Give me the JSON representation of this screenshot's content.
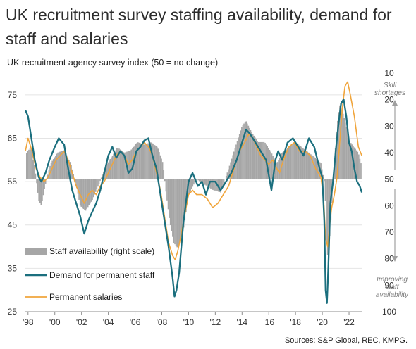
{
  "title": "UK recruitment survey staffing availability, demand for staff and salaries",
  "subtitle": "UK recruitment agency survey index (50 = no change)",
  "source": "Sources: S&P Global, REC, KMPG.",
  "notes": {
    "top": [
      "Skill",
      "shortages"
    ],
    "bottom": [
      "Improving",
      "staff",
      "availability"
    ]
  },
  "colors": {
    "availability": "#a6a6a6",
    "demand": "#1b6f7e",
    "salaries": "#f0a53c",
    "arrow": "#a0a0a0"
  },
  "chart_data": {
    "type": "line",
    "title": "UK recruitment survey staffing availability, demand for staff and salaries",
    "ylabel": "UK recruitment agency survey index (50 = no change)",
    "ylim": [
      25,
      80
    ],
    "y_ticks": [
      25,
      35,
      45,
      55,
      65,
      75
    ],
    "y2lim": [
      10,
      100
    ],
    "y2_inverted": true,
    "y2_ticks": [
      10,
      20,
      30,
      40,
      50,
      60,
      70,
      80,
      90,
      100
    ],
    "xlim": [
      1997.8,
      2023.0
    ],
    "x_ticks": [
      1998,
      2000,
      2002,
      2004,
      2006,
      2008,
      2010,
      2012,
      2014,
      2016,
      2018,
      2020,
      2022
    ],
    "x_tick_labels": [
      "'98",
      "'00",
      "'02",
      "'04",
      "'06",
      "'08",
      "'10",
      "'12",
      "'14",
      "'16",
      "'18",
      "'20",
      "'22"
    ],
    "grid": true,
    "series": [
      {
        "name": "Staff availability (right scale)",
        "kind": "bar",
        "axis": "right",
        "x": [
          1997.9,
          1998.2,
          1998.5,
          1998.8,
          1999.0,
          1999.3,
          1999.7,
          2000.2,
          2000.7,
          2001.2,
          2001.6,
          2001.9,
          2002.3,
          2002.8,
          2003.3,
          2003.8,
          2004.2,
          2004.7,
          2005.2,
          2005.7,
          2006.2,
          2006.7,
          2007.2,
          2007.7,
          2008.1,
          2008.3,
          2008.6,
          2008.9,
          2009.2,
          2009.6,
          2010.0,
          2010.6,
          2011.2,
          2011.8,
          2012.4,
          2013.0,
          2013.5,
          2014.0,
          2014.3,
          2014.7,
          2015.2,
          2015.7,
          2016.2,
          2016.6,
          2017.0,
          2017.5,
          2018.0,
          2018.5,
          2019.0,
          2019.5,
          2019.9,
          2020.2,
          2020.35,
          2020.5,
          2020.7,
          2020.9,
          2021.1,
          2021.3,
          2021.5,
          2021.7,
          2021.9,
          2022.1,
          2022.4,
          2022.7,
          2022.9
        ],
        "values": [
          40,
          38,
          45,
          58,
          60,
          52,
          44,
          40,
          39,
          44,
          52,
          60,
          62,
          58,
          52,
          45,
          42,
          38,
          40,
          39,
          36,
          37,
          36,
          38,
          44,
          54,
          66,
          74,
          76,
          70,
          56,
          50,
          52,
          54,
          55,
          46,
          38,
          30,
          28,
          32,
          36,
          36,
          40,
          44,
          40,
          38,
          36,
          38,
          40,
          42,
          44,
          52,
          80,
          76,
          62,
          44,
          30,
          22,
          24,
          28,
          32,
          36,
          38,
          40,
          44
        ]
      },
      {
        "name": "Demand for permanent staff",
        "kind": "line",
        "axis": "left",
        "x": [
          1997.8,
          1998.0,
          1998.2,
          1998.5,
          1998.8,
          1999.0,
          1999.3,
          1999.6,
          2000.0,
          2000.3,
          2000.7,
          2001.0,
          2001.3,
          2001.6,
          2001.9,
          2002.2,
          2002.5,
          2002.8,
          2003.1,
          2003.4,
          2003.7,
          2004.0,
          2004.3,
          2004.6,
          2004.9,
          2005.2,
          2005.5,
          2005.8,
          2006.1,
          2006.4,
          2006.7,
          2007.0,
          2007.3,
          2007.6,
          2007.9,
          2008.2,
          2008.5,
          2008.8,
          2008.95,
          2009.1,
          2009.3,
          2009.6,
          2010.0,
          2010.3,
          2010.7,
          2011.0,
          2011.3,
          2011.6,
          2012.0,
          2012.4,
          2012.8,
          2013.2,
          2013.6,
          2014.0,
          2014.3,
          2014.6,
          2015.0,
          2015.4,
          2015.8,
          2016.2,
          2016.5,
          2016.7,
          2017.0,
          2017.4,
          2017.8,
          2018.2,
          2018.6,
          2019.0,
          2019.4,
          2019.8,
          2020.0,
          2020.15,
          2020.25,
          2020.35,
          2020.45,
          2020.6,
          2020.8,
          2021.0,
          2021.2,
          2021.4,
          2021.6,
          2021.8,
          2022.0,
          2022.2,
          2022.4,
          2022.6,
          2022.8,
          2022.95
        ],
        "values": [
          71.5,
          70,
          66,
          60,
          56,
          55,
          57,
          60,
          63,
          65,
          63.5,
          58,
          53,
          50,
          47,
          43,
          46,
          48,
          50,
          53,
          57,
          61,
          63,
          60.5,
          62,
          61,
          57,
          58,
          62,
          63,
          64.5,
          65,
          61,
          58,
          52,
          46,
          40,
          33,
          28.5,
          30,
          34,
          45,
          55,
          57,
          54,
          55,
          52,
          55,
          55,
          53,
          55,
          57,
          60,
          64,
          67,
          66,
          64,
          62,
          60,
          53,
          60,
          62,
          60,
          64,
          65,
          63,
          61,
          65,
          63,
          58,
          56,
          46,
          30,
          27,
          35,
          50,
          55,
          62,
          68,
          73,
          74,
          70,
          64,
          62,
          58,
          55,
          54,
          52.5
        ]
      },
      {
        "name": "Permanent salaries",
        "kind": "line",
        "axis": "left",
        "x": [
          1997.8,
          1998.0,
          1998.3,
          1998.6,
          1998.9,
          1999.2,
          1999.5,
          1999.8,
          2000.1,
          2000.4,
          2000.7,
          2001.0,
          2001.3,
          2001.6,
          2001.9,
          2002.2,
          2002.5,
          2002.8,
          2003.1,
          2003.4,
          2003.7,
          2004.0,
          2004.3,
          2004.6,
          2004.9,
          2005.2,
          2005.5,
          2005.8,
          2006.1,
          2006.4,
          2006.7,
          2007.0,
          2007.3,
          2007.6,
          2007.9,
          2008.2,
          2008.5,
          2008.8,
          2009.0,
          2009.2,
          2009.4,
          2009.7,
          2010.0,
          2010.3,
          2010.6,
          2011.0,
          2011.4,
          2011.8,
          2012.2,
          2012.6,
          2013.0,
          2013.4,
          2013.8,
          2014.2,
          2014.5,
          2014.8,
          2015.1,
          2015.4,
          2015.7,
          2016.0,
          2016.3,
          2016.6,
          2016.8,
          2017.1,
          2017.5,
          2017.9,
          2018.3,
          2018.7,
          2019.1,
          2019.5,
          2019.9,
          2020.1,
          2020.25,
          2020.4,
          2020.55,
          2020.7,
          2020.9,
          2021.1,
          2021.3,
          2021.5,
          2021.7,
          2021.9,
          2022.1,
          2022.4,
          2022.7,
          2022.95
        ],
        "values": [
          62,
          65,
          62,
          58,
          56,
          55,
          56,
          58,
          60,
          61,
          62,
          60,
          57,
          54,
          52,
          50,
          52,
          53,
          52,
          54,
          55,
          57,
          59,
          61,
          62,
          61,
          59,
          60,
          62,
          63,
          64,
          63,
          61,
          57,
          53,
          47,
          41,
          38,
          37,
          39,
          42,
          47,
          52,
          53,
          52,
          52,
          51,
          49,
          50,
          52,
          54,
          58,
          62,
          64,
          66,
          65,
          63,
          61,
          60,
          59,
          60,
          58,
          57,
          60,
          63,
          64,
          62,
          62,
          61,
          58,
          56,
          51,
          42,
          40,
          45,
          49,
          52,
          56,
          64,
          72,
          77,
          78,
          75,
          70,
          63,
          61
        ]
      }
    ]
  }
}
